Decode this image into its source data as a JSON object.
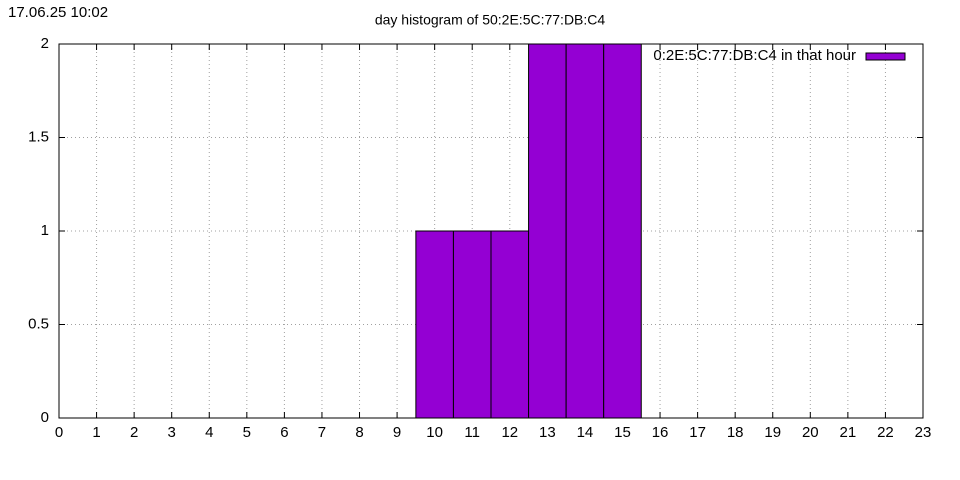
{
  "timestamp": "17.06.25 10:02",
  "chart_data": {
    "type": "bar",
    "title": "day histogram of 50:2E:5C:77:DB:C4",
    "x": [
      10,
      11,
      12,
      13,
      14,
      15
    ],
    "values": [
      1,
      1,
      1,
      2,
      2,
      2
    ],
    "series_name": "0:2E:5C:77:DB:C4 in that hour",
    "color": "#9400d3",
    "xlim": [
      0,
      23
    ],
    "xticks": [
      0,
      1,
      2,
      3,
      4,
      5,
      6,
      7,
      8,
      9,
      10,
      11,
      12,
      13,
      14,
      15,
      16,
      17,
      18,
      19,
      20,
      21,
      22,
      23
    ],
    "ylim": [
      0,
      2
    ],
    "yticks": [
      0,
      0.5,
      1,
      1.5,
      2
    ],
    "grid": true
  }
}
